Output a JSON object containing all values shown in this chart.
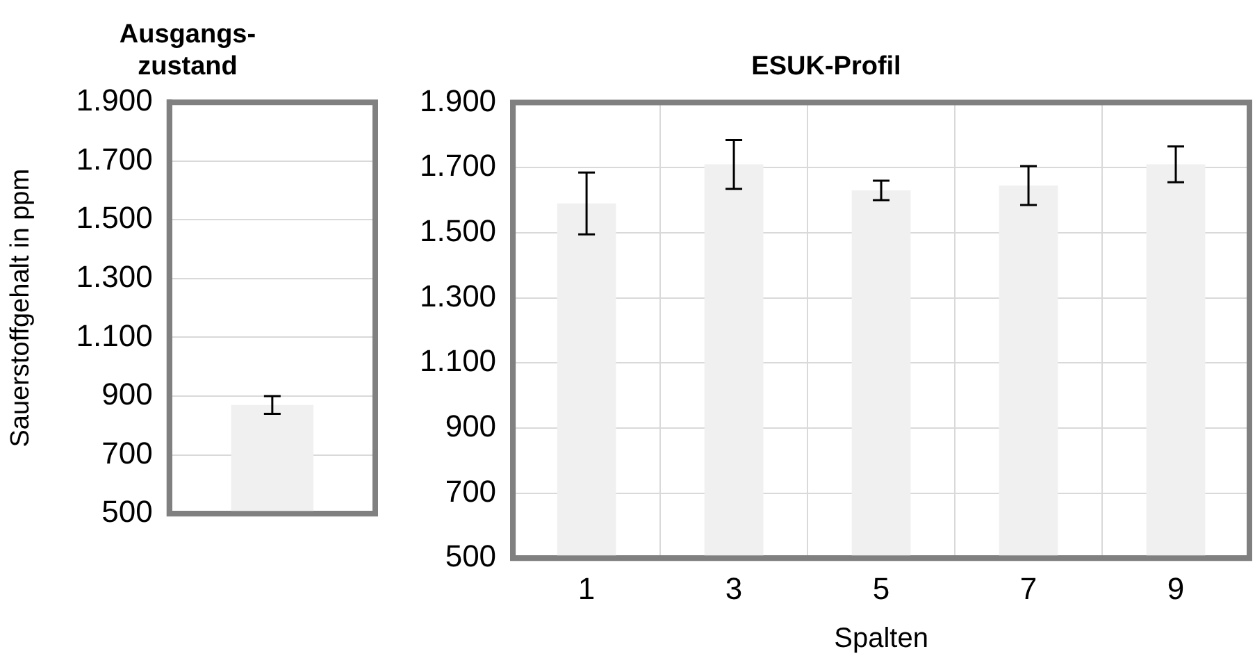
{
  "chart_data": [
    {
      "type": "bar",
      "title": "Ausgangs-zustand",
      "ylabel": "Sauerstoffgehalt in ppm",
      "categories": [
        null
      ],
      "values": [
        870
      ],
      "errors": [
        30
      ],
      "color": "#f0f0f0",
      "ylim": [
        500,
        1900
      ],
      "yticks": [
        500,
        700,
        900,
        {
          "value": 1100,
          "label": "1.100"
        },
        {
          "value": 1300,
          "label": "1.300"
        },
        {
          "value": 1500,
          "label": "1.500"
        },
        {
          "value": 1700,
          "label": "1.700"
        },
        {
          "value": 1900,
          "label": "1.900"
        }
      ],
      "grid": "y"
    },
    {
      "type": "bar",
      "title": "ESUK-Profil",
      "xlabel": "Spalten",
      "categories": [
        "1",
        "3",
        "5",
        "7",
        "9"
      ],
      "values": [
        1590,
        1710,
        1630,
        1645,
        1710
      ],
      "errors": [
        95,
        75,
        30,
        60,
        55
      ],
      "color": "#f0f0f0",
      "ylim": [
        500,
        1900
      ],
      "yticks": [
        500,
        700,
        900,
        {
          "value": 1100,
          "label": "1.100"
        },
        {
          "value": 1300,
          "label": "1.300"
        },
        {
          "value": 1500,
          "label": "1.500"
        },
        {
          "value": 1700,
          "label": "1.700"
        },
        {
          "value": 1900,
          "label": "1.900"
        }
      ],
      "grid": true
    }
  ]
}
